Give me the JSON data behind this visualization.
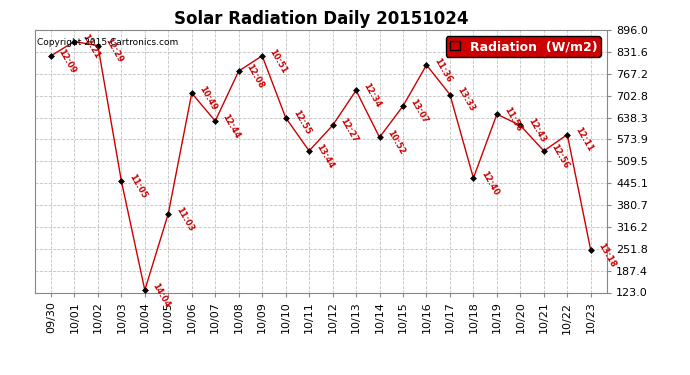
{
  "title": "Solar Radiation Daily 20151024",
  "copyright": "Copyright 2015 Cartronics.com",
  "legend_label": "Radiation  (W/m2)",
  "ylim": [
    123.0,
    896.0
  ],
  "yticks": [
    123.0,
    187.4,
    251.8,
    316.2,
    380.7,
    445.1,
    509.5,
    573.9,
    638.3,
    702.8,
    767.2,
    831.6,
    896.0
  ],
  "background_color": "#ffffff",
  "grid_color": "#bbbbbb",
  "line_color": "#cc0000",
  "dates": [
    "09/30",
    "10/01",
    "10/02",
    "10/03",
    "10/04",
    "10/05",
    "10/06",
    "10/07",
    "10/08",
    "10/09",
    "10/10",
    "10/11",
    "10/12",
    "10/13",
    "10/14",
    "10/15",
    "10/16",
    "10/17",
    "10/18",
    "10/19",
    "10/20",
    "10/21",
    "10/22",
    "10/23"
  ],
  "values": [
    820,
    862,
    850,
    452,
    130,
    355,
    710,
    628,
    775,
    820,
    638,
    540,
    615,
    718,
    580,
    672,
    793,
    706,
    460,
    648,
    615,
    540,
    588,
    247
  ],
  "time_labels": [
    "12:09",
    "12:21",
    "12:29",
    "11:05",
    "14:04",
    "11:03",
    "10:49",
    "12:44",
    "12:08",
    "10:51",
    "12:55",
    "13:44",
    "12:27",
    "12:34",
    "10:52",
    "13:07",
    "11:36",
    "13:33",
    "12:40",
    "11:56",
    "12:43",
    "12:56",
    "12:11",
    "13:18"
  ],
  "title_fontsize": 12,
  "tick_fontsize": 8,
  "legend_fontsize": 9
}
